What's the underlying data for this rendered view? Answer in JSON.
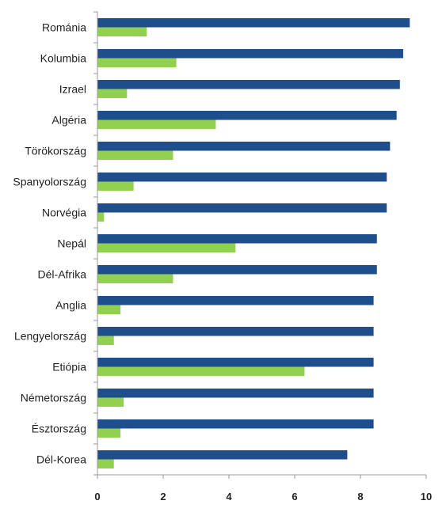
{
  "chart_data": {
    "type": "bar",
    "orientation": "horizontal",
    "categories": [
      "Románia",
      "Kolumbia",
      "Izrael",
      "Algéria",
      "Törökország",
      "Spanyolország",
      "Norvégia",
      "Nepál",
      "Dél-Afrika",
      "Anglia",
      "Lengyelország",
      "Etiópia",
      "Németország",
      "Észtország",
      "Dél-Korea"
    ],
    "series": [
      {
        "color": "#1f4e8c",
        "values": [
          9.5,
          9.3,
          9.2,
          9.1,
          8.9,
          8.8,
          8.8,
          8.5,
          8.5,
          8.4,
          8.4,
          8.4,
          8.4,
          8.4,
          7.6
        ]
      },
      {
        "color": "#92d050",
        "values": [
          1.5,
          2.4,
          0.9,
          3.6,
          2.3,
          1.1,
          0.2,
          4.2,
          2.3,
          0.7,
          0.5,
          6.3,
          0.8,
          0.7,
          0.5
        ]
      }
    ],
    "xlim": [
      0,
      10
    ],
    "xticks": [
      "0",
      "2",
      "4",
      "6",
      "8",
      "10"
    ],
    "grid": false,
    "legend": "none",
    "title": "",
    "xlabel": "",
    "ylabel": ""
  }
}
